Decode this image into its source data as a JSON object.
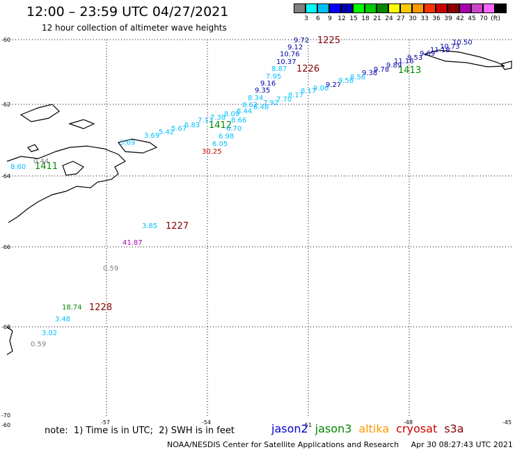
{
  "header": {
    "title": "12:00 – 23:59 UTC 04/27/2021",
    "subtitle": "12 hour collection of altimeter wave heights"
  },
  "scale": {
    "colors": [
      "#808080",
      "#00ffff",
      "#00bfff",
      "#0000ff",
      "#0000aa",
      "#00ff00",
      "#00cc00",
      "#008800",
      "#ffff00",
      "#ffcc00",
      "#ff9900",
      "#ff3300",
      "#cc0000",
      "#880000",
      "#aa00aa",
      "#cc44cc",
      "#ff66ff",
      "#000000"
    ],
    "labels": [
      "3",
      "6",
      "9",
      "12",
      "15",
      "18",
      "21",
      "24",
      "27",
      "30",
      "33",
      "36",
      "39",
      "42",
      "45",
      "70",
      "(ft)"
    ]
  },
  "axes": {
    "lat_labels": [
      "-60",
      "-62",
      "-64",
      "-66",
      "-68",
      "-70"
    ],
    "lon_labels": [
      "-60",
      "-57",
      "-54",
      "-51",
      "-48",
      "-45"
    ]
  },
  "track_labels": [
    {
      "t": "1225",
      "c": "#880000"
    },
    {
      "t": "1226",
      "c": "#880000"
    },
    {
      "t": "1413",
      "c": "#008800"
    },
    {
      "t": "1412",
      "c": "#008800"
    },
    {
      "t": "1411",
      "c": "#008800"
    },
    {
      "t": "1227",
      "c": "#880000"
    },
    {
      "t": "1228",
      "c": "#880000"
    }
  ],
  "measurements": [
    {
      "t": "9.72",
      "c": "#0000aa"
    },
    {
      "t": "9.12",
      "c": "#0000aa"
    },
    {
      "t": "10.76",
      "c": "#0000aa"
    },
    {
      "t": "10.37",
      "c": "#0000aa"
    },
    {
      "t": "8.87",
      "c": "#00bfff"
    },
    {
      "t": "7.95",
      "c": "#00bfff"
    },
    {
      "t": "9.16",
      "c": "#0000aa"
    },
    {
      "t": "9.35",
      "c": "#0000aa"
    },
    {
      "t": "8.34",
      "c": "#00bfff"
    },
    {
      "t": "8.62",
      "c": "#00bfff"
    },
    {
      "t": "8.44",
      "c": "#00bfff"
    },
    {
      "t": "8.09",
      "c": "#00bfff"
    },
    {
      "t": "7.38",
      "c": "#00bfff"
    },
    {
      "t": "7.13",
      "c": "#00bfff"
    },
    {
      "t": "6.83",
      "c": "#00bfff"
    },
    {
      "t": "5.67",
      "c": "#00bfff"
    },
    {
      "t": "5.42",
      "c": "#00bfff"
    },
    {
      "t": "3.69",
      "c": "#00bfff"
    },
    {
      "t": "3.69",
      "c": "#00bfff"
    },
    {
      "t": "8.66",
      "c": "#00bfff"
    },
    {
      "t": "6.70",
      "c": "#00bfff"
    },
    {
      "t": "6.98",
      "c": "#00bfff"
    },
    {
      "t": "6.05",
      "c": "#00bfff"
    },
    {
      "t": "30.25",
      "c": "#cc0000"
    },
    {
      "t": "8.48",
      "c": "#00bfff"
    },
    {
      "t": "7.92",
      "c": "#00bfff"
    },
    {
      "t": "7.70",
      "c": "#00bfff"
    },
    {
      "t": "8.17",
      "c": "#00bfff"
    },
    {
      "t": "8.17",
      "c": "#00bfff"
    },
    {
      "t": "9.06",
      "c": "#00bfff"
    },
    {
      "t": "9.27",
      "c": "#0000aa"
    },
    {
      "t": "9.56",
      "c": "#00bfff"
    },
    {
      "t": "8.56",
      "c": "#00bfff"
    },
    {
      "t": "9.38",
      "c": "#0000aa"
    },
    {
      "t": "9.78",
      "c": "#0000aa"
    },
    {
      "t": "9.89",
      "c": "#0000aa"
    },
    {
      "t": "11.16",
      "c": "#0000aa"
    },
    {
      "t": "9.53",
      "c": "#0000aa"
    },
    {
      "t": "9.69",
      "c": "#0000aa"
    },
    {
      "t": "11.18",
      "c": "#0000aa"
    },
    {
      "t": "10.73",
      "c": "#0000aa"
    },
    {
      "t": "10.50",
      "c": "#0000aa"
    },
    {
      "t": "8.60",
      "c": "#00bfff"
    },
    {
      "t": "0.44",
      "c": "#808080"
    },
    {
      "t": "3.85",
      "c": "#00bfff"
    },
    {
      "t": "41.87",
      "c": "#aa00aa"
    },
    {
      "t": "0.59",
      "c": "#808080"
    },
    {
      "t": "18.74",
      "c": "#008800"
    },
    {
      "t": "3.48",
      "c": "#00bfff"
    },
    {
      "t": "3.02",
      "c": "#00bfff"
    },
    {
      "t": "0.59",
      "c": "#808080"
    }
  ],
  "footer": {
    "note": "note:  1) Time is in UTC;  2) SWH is in feet",
    "satellites": [
      {
        "name": "jason2",
        "color": "#0000cc"
      },
      {
        "name": "jason3",
        "color": "#008800"
      },
      {
        "name": "altika",
        "color": "#ff9900"
      },
      {
        "name": "cryosat",
        "color": "#cc0000"
      },
      {
        "name": "s3a",
        "color": "#880000"
      }
    ],
    "credit": "NOAA/NESDIS Center for Satellite Applications and Research     Apr 30 08:27:43 UTC 2021"
  }
}
